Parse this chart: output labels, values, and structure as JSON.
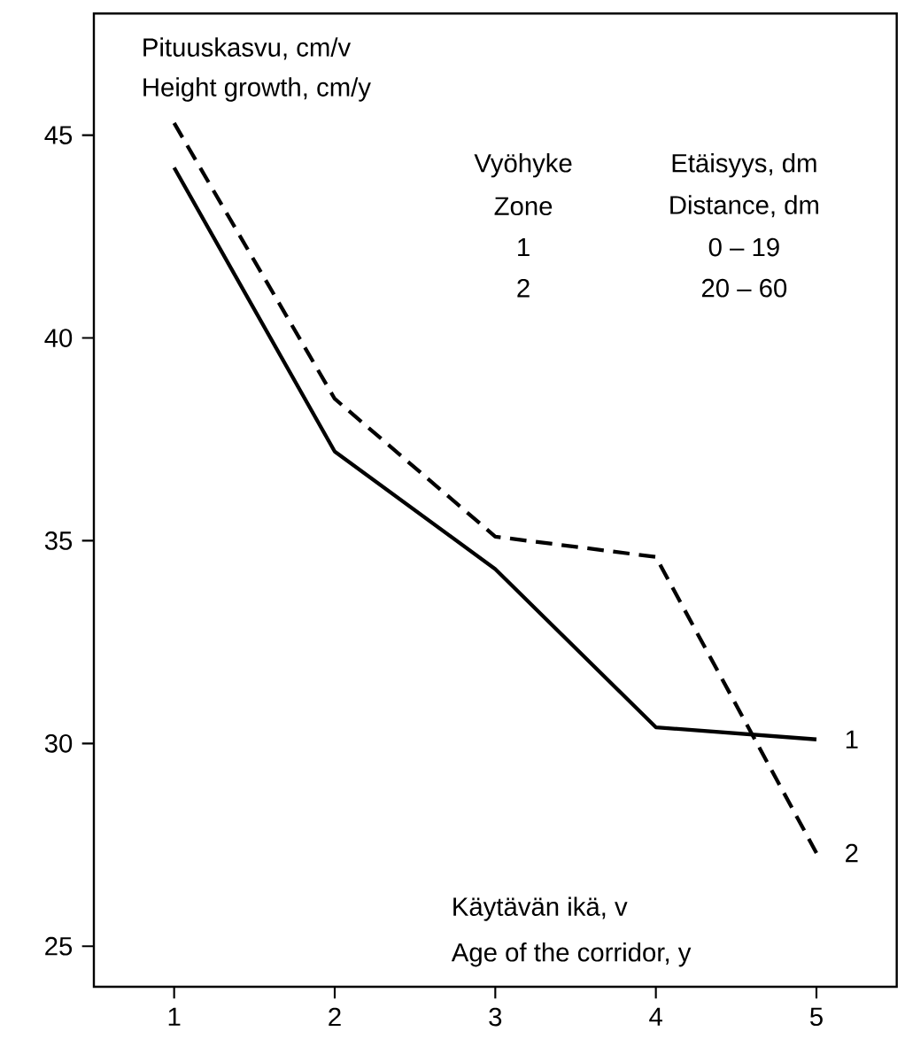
{
  "chart_data": {
    "type": "line",
    "ylabel": "Pituuskasvu, cm/v",
    "xlabel": "Käytävän ikä, v",
    "annotations": [
      "Height growth, cm/y",
      "Age of the corridor, y",
      "Vyöhyke",
      "Etäisyys, dm",
      "Zone",
      "Distance, dm",
      "1",
      "0 – 19",
      "2",
      "20 – 60"
    ],
    "x": [
      1,
      2,
      3,
      4,
      5
    ],
    "series": [
      {
        "name": "1",
        "color": "#000000",
        "line_style": "solid",
        "values": [
          44.2,
          37.2,
          34.3,
          30.4,
          30.1
        ]
      },
      {
        "name": "2",
        "color": "#000000",
        "line_style": "dashed",
        "values": [
          45.3,
          38.5,
          35.1,
          34.6,
          27.3
        ]
      }
    ],
    "xlim": [
      0.5,
      5.5
    ],
    "ylim": [
      24,
      48
    ],
    "xticks": [
      1,
      2,
      3,
      4,
      5
    ],
    "yticks": [
      25,
      30,
      35,
      40,
      45
    ],
    "marker": "none"
  }
}
